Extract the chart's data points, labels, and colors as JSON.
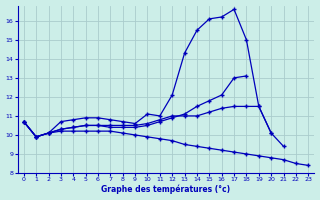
{
  "xlabel": "Graphe des températures (°c)",
  "bg_color": "#cceee8",
  "grid_color": "#aacccc",
  "line_color": "#0000bb",
  "xlim": [
    -0.5,
    23.5
  ],
  "ylim": [
    8,
    16.8
  ],
  "yticks": [
    8,
    9,
    10,
    11,
    12,
    13,
    14,
    15,
    16
  ],
  "xticks": [
    0,
    1,
    2,
    3,
    4,
    5,
    6,
    7,
    8,
    9,
    10,
    11,
    12,
    13,
    14,
    15,
    16,
    17,
    18,
    19,
    20,
    21,
    22,
    23
  ],
  "series": [
    [
      10.7,
      9.9,
      10.1,
      10.7,
      10.8,
      10.9,
      10.9,
      10.8,
      10.7,
      10.6,
      11.1,
      11.0,
      12.1,
      14.3,
      15.5,
      16.1,
      16.2,
      16.6,
      15.0,
      11.5,
      10.1,
      9.4,
      null,
      null
    ],
    [
      10.7,
      9.9,
      10.1,
      10.3,
      10.4,
      10.5,
      10.5,
      10.4,
      10.4,
      10.4,
      10.5,
      10.7,
      10.9,
      11.1,
      11.5,
      11.8,
      12.1,
      13.0,
      13.1,
      null,
      null,
      null,
      null,
      null
    ],
    [
      10.7,
      9.9,
      10.1,
      10.3,
      10.4,
      10.5,
      10.5,
      10.5,
      10.5,
      10.5,
      10.6,
      10.8,
      11.0,
      11.0,
      11.0,
      11.2,
      11.4,
      11.5,
      11.5,
      11.5,
      10.1,
      null,
      null,
      null
    ],
    [
      10.7,
      9.9,
      10.1,
      10.2,
      10.2,
      10.2,
      10.2,
      10.2,
      10.1,
      10.0,
      9.9,
      9.8,
      9.7,
      9.5,
      9.4,
      9.3,
      9.2,
      9.1,
      9.0,
      8.9,
      8.8,
      8.7,
      8.5,
      8.4
    ]
  ]
}
